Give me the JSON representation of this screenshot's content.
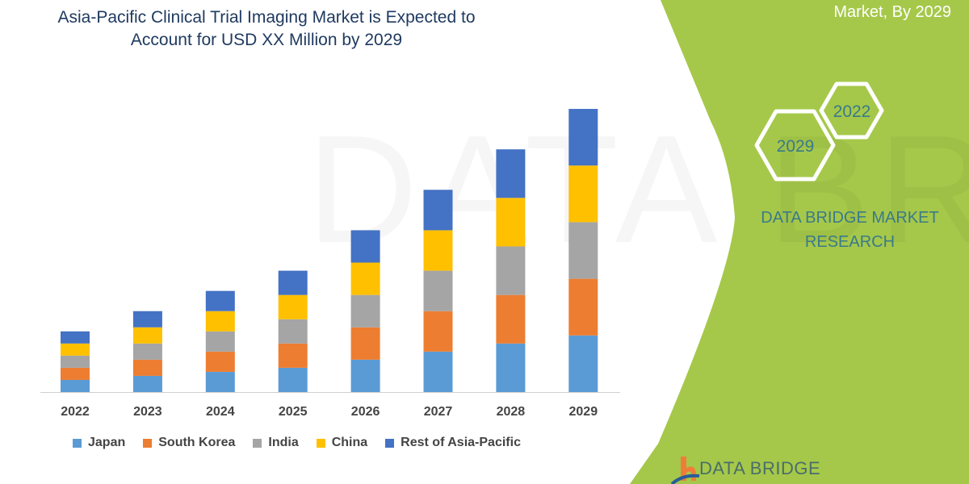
{
  "title": "Asia-Pacific Clinical Trial Imaging Market is Expected to Account for USD XX Million by 2029",
  "side_panel": {
    "subtitle": "Market, By 2029",
    "hex_large": "2029",
    "hex_small": "2022",
    "brand": "DATA BRIDGE MARKET RESEARCH",
    "logo_text": "DATA BRIDGE",
    "watermark": "DATA BRIDGE MARKET RESEARCH",
    "panel_color": "#a5c84a",
    "text_color": "#3a7a8a"
  },
  "chart_data": {
    "type": "bar",
    "stacked": true,
    "title": "Asia-Pacific Clinical Trial Imaging Market is Expected to Account for USD XX Million by 2029",
    "xlabel": "",
    "ylabel": "",
    "grid": false,
    "legend_position": "bottom",
    "categories": [
      "2022",
      "2023",
      "2024",
      "2025",
      "2026",
      "2027",
      "2028",
      "2029"
    ],
    "series": [
      {
        "name": "Japan",
        "color": "#5b9bd5",
        "values": [
          15,
          20,
          25,
          30,
          40,
          50,
          60,
          70
        ]
      },
      {
        "name": "South Korea",
        "color": "#ed7d31",
        "values": [
          15,
          20,
          25,
          30,
          40,
          50,
          60,
          70
        ]
      },
      {
        "name": "India",
        "color": "#a5a5a5",
        "values": [
          15,
          20,
          25,
          30,
          40,
          50,
          60,
          70
        ]
      },
      {
        "name": "China",
        "color": "#ffc000",
        "values": [
          15,
          20,
          25,
          30,
          40,
          50,
          60,
          70
        ]
      },
      {
        "name": "Rest of Asia-Pacific",
        "color": "#4472c4",
        "values": [
          15,
          20,
          25,
          30,
          40,
          50,
          60,
          70
        ]
      }
    ]
  }
}
